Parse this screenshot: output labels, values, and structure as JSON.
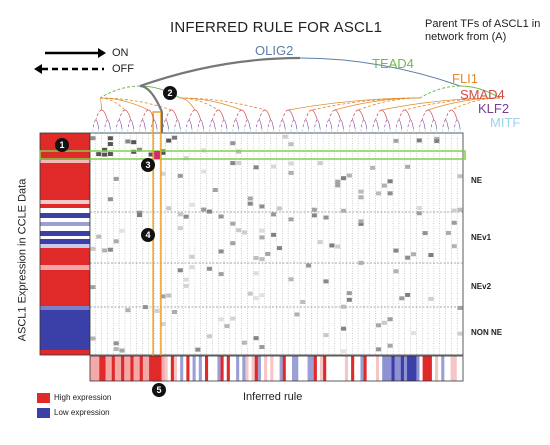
{
  "title": "INFERRED RULE FOR ASCL1",
  "parent_caption": "Parent TFs of ASCL1 in network from (A)",
  "legend_top": {
    "on_label": "ON",
    "off_label": "OFF"
  },
  "parent_tfs": [
    {
      "name": "OLIG2",
      "color": "#5b7fa6"
    },
    {
      "name": "TEAD4",
      "color": "#6dbb4a"
    },
    {
      "name": "FLI1",
      "color": "#e08a2c"
    },
    {
      "name": "SMAD4",
      "color": "#d24a4a"
    },
    {
      "name": "KLF2",
      "color": "#7a3c98"
    },
    {
      "name": "MITF",
      "color": "#9fd3e8"
    }
  ],
  "y_axis_label": "ASCL1 Expression in CCLE Data",
  "x_axis_label": "Inferred rule",
  "groups": [
    "NE",
    "NEv1",
    "NEv2",
    "NON NE"
  ],
  "markers": [
    "1",
    "2",
    "3",
    "4",
    "5"
  ],
  "expression_legend": [
    {
      "label": "High expression",
      "color": "#e02a2a"
    },
    {
      "label": "Low expression",
      "color": "#3b3fa8"
    }
  ]
}
